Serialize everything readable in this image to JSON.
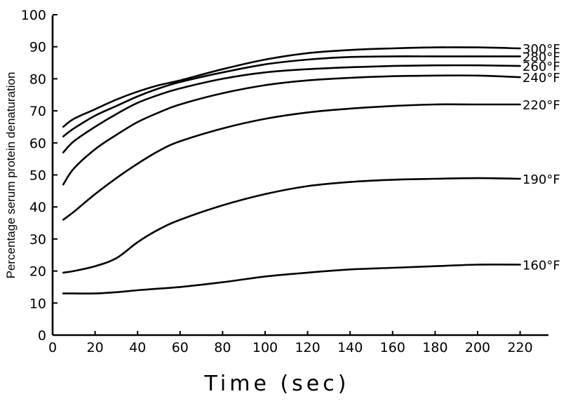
{
  "chart_data": {
    "type": "line",
    "title": "",
    "xlabel": "Time (sec)",
    "ylabel": "Percentage serum protein denaturation",
    "xlim": [
      0,
      230
    ],
    "ylim": [
      0,
      100
    ],
    "x_ticks": [
      "0",
      "20",
      "40",
      "60",
      "80",
      "100",
      "120",
      "140",
      "160",
      "180",
      "200",
      "220"
    ],
    "y_ticks": [
      "0",
      "10",
      "20",
      "30",
      "40",
      "50",
      "60",
      "70",
      "80",
      "90",
      "100"
    ],
    "grid": false,
    "x": [
      5,
      10,
      20,
      30,
      40,
      50,
      60,
      80,
      100,
      120,
      140,
      160,
      180,
      200,
      220
    ],
    "series": [
      {
        "name": "300°F",
        "values": [
          65,
          67.5,
          70.5,
          73.5,
          76,
          78,
          79.5,
          83,
          86,
          88,
          89,
          89.5,
          89.8,
          89.8,
          89.5
        ]
      },
      {
        "name": "280°F",
        "values": [
          62,
          64.5,
          68.5,
          71.5,
          74.5,
          77,
          79,
          82,
          84.5,
          86,
          86.8,
          87,
          87,
          87,
          87
        ]
      },
      {
        "name": "260°F",
        "values": [
          57,
          60.5,
          65,
          69,
          72.5,
          75,
          77,
          80,
          82,
          83,
          83.6,
          84,
          84.2,
          84.2,
          84
        ]
      },
      {
        "name": "240°F",
        "values": [
          47,
          52,
          58,
          62.5,
          66.5,
          69.5,
          72,
          75.5,
          78,
          79.5,
          80.3,
          80.8,
          81,
          81,
          80.5
        ]
      },
      {
        "name": "220°F",
        "values": [
          36,
          38.5,
          44,
          49,
          53.5,
          57.5,
          60.5,
          64.5,
          67.5,
          69.5,
          70.7,
          71.5,
          72,
          72,
          72
        ]
      },
      {
        "name": "190°F",
        "values": [
          19.5,
          20,
          21.5,
          24,
          29,
          33,
          36,
          40.5,
          44,
          46.5,
          47.8,
          48.5,
          48.8,
          49,
          48.8
        ]
      },
      {
        "name": "160°F",
        "values": [
          13,
          13,
          13,
          13.4,
          14,
          14.5,
          15,
          16.5,
          18.3,
          19.5,
          20.5,
          21,
          21.5,
          22,
          22
        ]
      }
    ]
  }
}
